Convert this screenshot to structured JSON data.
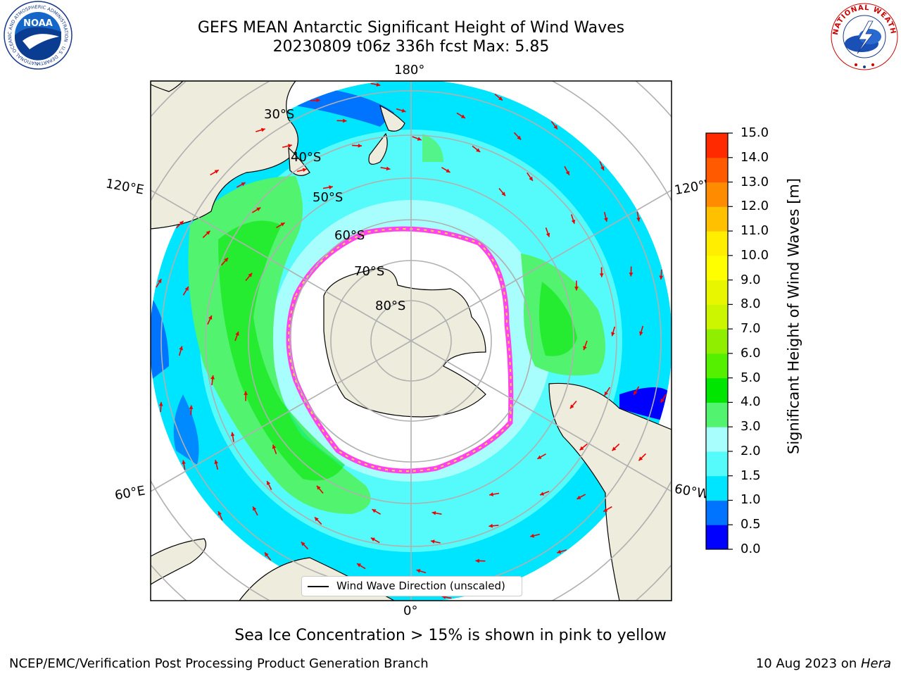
{
  "title": {
    "line1": "GEFS MEAN Antarctic Significant Height of Wind Waves",
    "line2": "20230809 t06z 336h fcst   Max: 5.85"
  },
  "map": {
    "meridian_labels": [
      "180°",
      "120°E",
      "120°W",
      "60°E",
      "60°W",
      "0°"
    ],
    "parallel_labels": [
      "30°S",
      "40°S",
      "50°S",
      "60°S",
      "70°S",
      "80°S"
    ],
    "legend_label": "Wind Wave Direction (unscaled)",
    "colors": {
      "land": "#eeecdc",
      "ocean_low": "#00e5ff",
      "ocean_mid": "#55fbfb",
      "ocean_pale": "#a8fdfd",
      "green_light": "#52f36e",
      "green": "#00e600",
      "blue": "#0073ff",
      "ice_pink": "#ff44ee",
      "ice_yellow": "#ffdd44",
      "arrow": "#ee0000",
      "grid": "#b0b0b0"
    }
  },
  "colorbar": {
    "label": "Significant Height of Wind Waves [m]",
    "ticks": [
      "15.0",
      "14.0",
      "13.0",
      "12.0",
      "11.0",
      "10.0",
      "9.0",
      "8.0",
      "7.0",
      "6.0",
      "5.0",
      "4.0",
      "3.0",
      "2.0",
      "1.5",
      "1.0",
      "0.5",
      "0.0"
    ],
    "colors_bottom_to_top": [
      "#0000ff",
      "#0073ff",
      "#00e5ff",
      "#55fbfb",
      "#a8fdfd",
      "#52f36e",
      "#00e600",
      "#55f000",
      "#90ee00",
      "#ccf500",
      "#e8f700",
      "#ffff00",
      "#ffee00",
      "#ffc000",
      "#ff8c00",
      "#ff5a00",
      "#ff2a00"
    ]
  },
  "note": "Sea Ice Concentration > 15% is shown in pink to yellow",
  "footer": {
    "left": "NCEP/EMC/Verification Post Processing Product Generation Branch",
    "right_date": "10 Aug 2023 on ",
    "right_machine": "Hera"
  },
  "logos": {
    "noaa_text": "NOAA",
    "noaa_ring": "NATIONAL OCEANIC AND ATMOSPHERIC ADMINISTRATION · U.S. DEPARTMENT OF COMMERCE",
    "nws_ring": "NATIONAL WEATHER SERVICE"
  }
}
